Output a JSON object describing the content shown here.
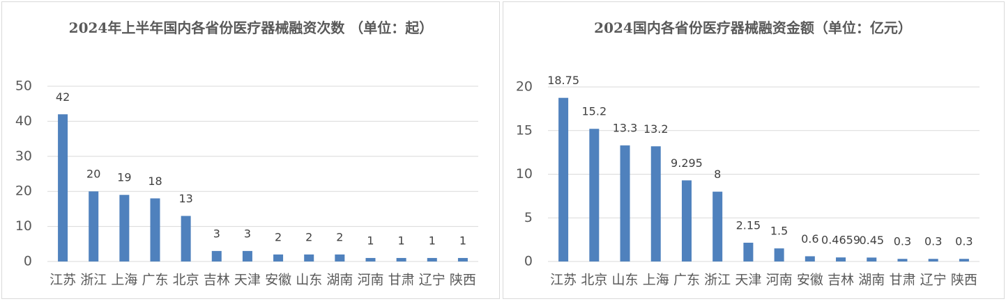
{
  "chart_data": [
    {
      "type": "bar",
      "title": "2024年上半年国内各省份医疗器械融资次数 （单位：起）",
      "categories": [
        "江苏",
        "浙江",
        "上海",
        "广东",
        "北京",
        "吉林",
        "天津",
        "安徽",
        "山东",
        "湖南",
        "河南",
        "甘肃",
        "辽宁",
        "陕西"
      ],
      "values": [
        42,
        20,
        19,
        18,
        13,
        3,
        3,
        2,
        2,
        2,
        1,
        1,
        1,
        1
      ],
      "color": "#4f81bd",
      "ylim": [
        0,
        50
      ],
      "yticks": [
        0,
        10,
        20,
        30,
        40,
        50
      ],
      "grid": true
    },
    {
      "type": "bar",
      "title": "2024国内各省份医疗器械融资金额（单位：亿元）",
      "categories": [
        "江苏",
        "北京",
        "山东",
        "上海",
        "广东",
        "浙江",
        "天津",
        "河南",
        "安徽",
        "吉林",
        "湖南",
        "甘肃",
        "辽宁",
        "陕西"
      ],
      "values": [
        18.75,
        15.2,
        13.3,
        13.2,
        9.295,
        8,
        2.15,
        1.5,
        0.6,
        0.4659,
        0.45,
        0.3,
        0.3,
        0.3
      ],
      "color": "#4f81bd",
      "ylim": [
        0,
        20
      ],
      "yticks": [
        0,
        5,
        10,
        15,
        20
      ],
      "grid": true
    }
  ]
}
